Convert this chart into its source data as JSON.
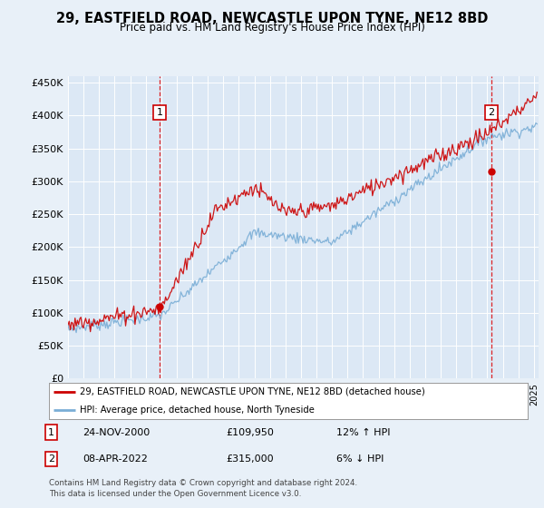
{
  "title": "29, EASTFIELD ROAD, NEWCASTLE UPON TYNE, NE12 8BD",
  "subtitle": "Price paid vs. HM Land Registry's House Price Index (HPI)",
  "background_color": "#e8f0f8",
  "plot_bg_color": "#dce8f5",
  "y_ticks": [
    0,
    50000,
    100000,
    150000,
    200000,
    250000,
    300000,
    350000,
    400000,
    450000
  ],
  "y_tick_labels": [
    "£0",
    "£50K",
    "£100K",
    "£150K",
    "£200K",
    "£250K",
    "£300K",
    "£350K",
    "£400K",
    "£450K"
  ],
  "ylim": [
    0,
    460000
  ],
  "xlim_start": 1995,
  "xlim_end": 2025.3,
  "sale1_date": 2000.9,
  "sale1_price": 109950,
  "sale1_label": "1",
  "sale1_display": "24-NOV-2000",
  "sale1_price_display": "£109,950",
  "sale1_hpi": "12% ↑ HPI",
  "sale2_date": 2022.27,
  "sale2_price": 315000,
  "sale2_label": "2",
  "sale2_display": "08-APR-2022",
  "sale2_price_display": "£315,000",
  "sale2_hpi": "6% ↓ HPI",
  "legend_label1": "29, EASTFIELD ROAD, NEWCASTLE UPON TYNE, NE12 8BD (detached house)",
  "legend_label2": "HPI: Average price, detached house, North Tyneside",
  "footer": "Contains HM Land Registry data © Crown copyright and database right 2024.\nThis data is licensed under the Open Government Licence v3.0.",
  "line_color_price": "#cc0000",
  "line_color_hpi": "#7aaed6"
}
